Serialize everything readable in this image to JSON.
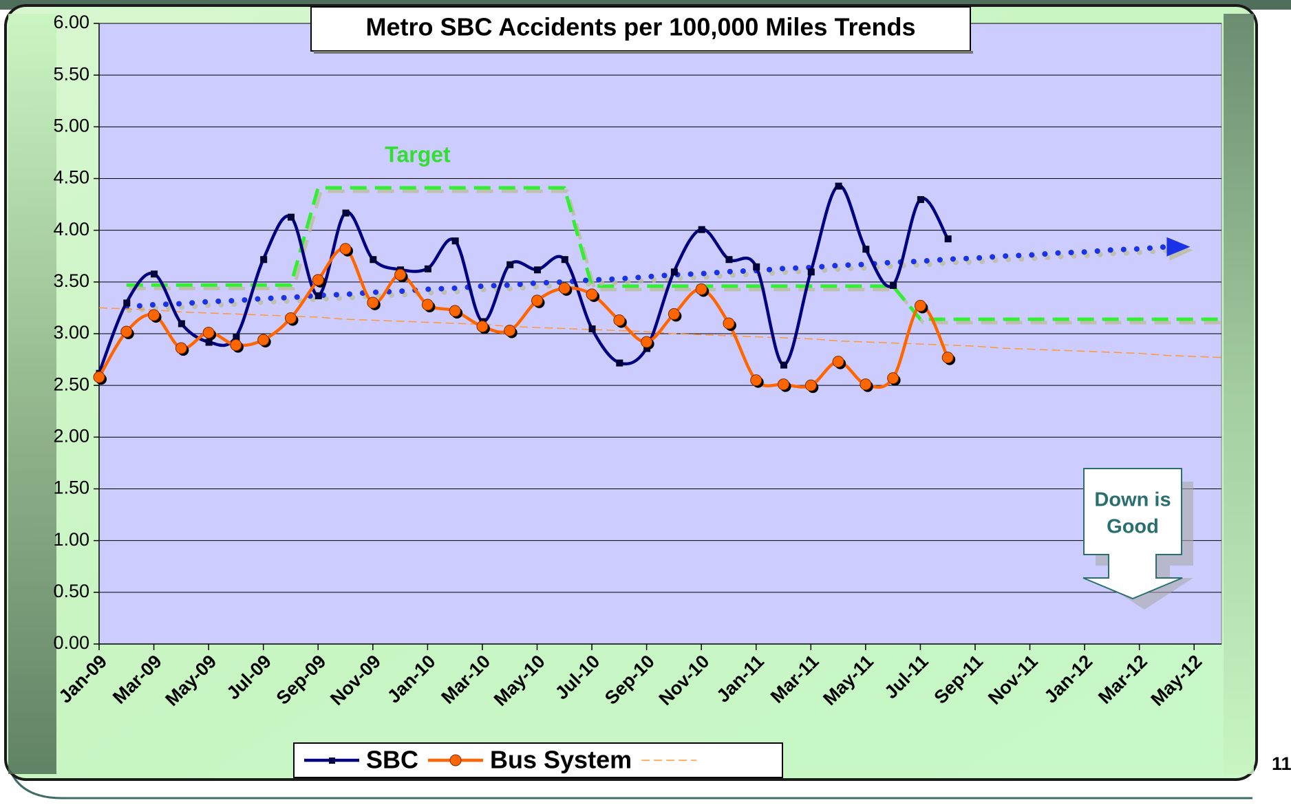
{
  "chart_data": {
    "type": "line",
    "title": "Metro SBC Accidents per 100,000 Miles Trends",
    "categories": [
      "Jan-09",
      null,
      "Mar-09",
      null,
      "May-09",
      null,
      "Jul-09",
      null,
      "Sep-09",
      null,
      "Nov-09",
      null,
      "Jan-10",
      null,
      "Mar-10",
      null,
      "May-10",
      null,
      "Jul-10",
      null,
      "Sep-10",
      null,
      "Nov-10",
      null,
      "Jan-11",
      null,
      "Mar-11",
      null,
      "May-11",
      null,
      "Jul-11",
      null,
      "Sep-11",
      null,
      "Nov-11",
      null,
      "Jan-12",
      null,
      "Mar-12",
      null,
      "May-12",
      null
    ],
    "series": [
      {
        "name": "SBC",
        "color": "#000080",
        "style": "solid",
        "marker": "square",
        "smooth": true,
        "values": [
          2.62,
          3.3,
          3.58,
          3.1,
          2.92,
          2.97,
          3.72,
          4.13,
          3.37,
          4.17,
          3.72,
          3.62,
          3.63,
          3.9,
          3.12,
          3.67,
          3.62,
          3.72,
          3.05,
          2.72,
          2.86,
          3.6,
          4.01,
          3.72,
          3.65,
          2.7,
          3.6,
          4.43,
          3.82,
          3.47,
          4.3,
          3.92,
          null,
          null,
          null,
          null,
          null,
          null,
          null,
          null,
          null,
          null
        ]
      },
      {
        "name": "Bus System",
        "color": "#ff6600",
        "style": "solid",
        "marker": "circle",
        "smooth": true,
        "values": [
          2.58,
          3.02,
          3.18,
          2.86,
          3.01,
          2.89,
          2.94,
          3.15,
          3.52,
          3.82,
          3.3,
          3.57,
          3.28,
          3.22,
          3.07,
          3.03,
          3.32,
          3.44,
          3.38,
          3.13,
          2.92,
          3.19,
          3.43,
          3.1,
          2.55,
          2.51,
          2.5,
          2.73,
          2.51,
          2.57,
          3.27,
          2.77,
          null,
          null,
          null,
          null,
          null,
          null,
          null,
          null,
          null,
          null
        ]
      },
      {
        "color": "#ff9933",
        "style": "dashed-thin",
        "marker": "none",
        "smooth": false,
        "values": [
          3.25,
          3.24,
          3.23,
          3.21,
          3.2,
          3.19,
          3.18,
          3.17,
          3.16,
          3.14,
          3.13,
          3.12,
          3.11,
          3.1,
          3.09,
          3.07,
          3.06,
          3.05,
          3.04,
          3.03,
          3.02,
          3.0,
          2.99,
          2.98,
          2.97,
          2.96,
          2.95,
          2.93,
          2.92,
          2.91,
          2.9,
          2.89,
          2.88,
          2.86,
          2.85,
          2.84,
          2.83,
          2.82,
          2.81,
          2.79,
          2.78,
          2.77
        ]
      },
      {
        "color": "#33ee33",
        "style": "dashed",
        "marker": "none",
        "smooth": false,
        "values": [
          null,
          3.47,
          3.47,
          3.47,
          3.47,
          3.47,
          3.47,
          3.47,
          4.41,
          4.41,
          4.41,
          4.41,
          4.41,
          4.41,
          4.41,
          4.41,
          4.41,
          4.41,
          3.46,
          3.46,
          3.46,
          3.46,
          3.46,
          3.46,
          3.46,
          3.46,
          3.46,
          3.46,
          3.46,
          3.46,
          3.14,
          3.14,
          3.14,
          3.14,
          3.14,
          3.14,
          3.14,
          3.14,
          3.14,
          3.14,
          3.14,
          3.14
        ]
      },
      {
        "color": "#1a33e6",
        "style": "dotted",
        "marker": "arrow",
        "smooth": false,
        "values": [
          null,
          3.26,
          3.28,
          3.29,
          3.31,
          3.32,
          3.34,
          3.35,
          3.37,
          3.38,
          3.4,
          3.41,
          3.43,
          3.44,
          3.46,
          3.47,
          3.49,
          3.5,
          3.52,
          3.53,
          3.55,
          3.57,
          3.58,
          3.6,
          3.61,
          3.63,
          3.64,
          3.66,
          3.67,
          3.69,
          3.7,
          3.72,
          3.73,
          3.75,
          3.76,
          3.78,
          3.79,
          3.81,
          3.82,
          3.84,
          null,
          null
        ]
      }
    ],
    "ylim": [
      0,
      6
    ],
    "yticks": [
      {
        "value": 0,
        "label": "0.00"
      },
      {
        "value": 0.5,
        "label": "0.50"
      },
      {
        "value": 1,
        "label": "1.00"
      },
      {
        "value": 1.5,
        "label": "1.50"
      },
      {
        "value": 2,
        "label": "2.00"
      },
      {
        "value": 2.5,
        "label": "2.50"
      },
      {
        "value": 3,
        "label": "3.00"
      },
      {
        "value": 3.5,
        "label": "3.50"
      },
      {
        "value": 4,
        "label": "4.00"
      },
      {
        "value": 4.5,
        "label": "4.50"
      },
      {
        "value": 5,
        "label": "5.00"
      },
      {
        "value": 5.5,
        "label": "5.50"
      },
      {
        "value": 6,
        "label": "6.00"
      }
    ],
    "grid": true,
    "legend": "bottom",
    "annotations": {
      "target": "Target",
      "down_is_good": [
        "Down is",
        "Good"
      ]
    },
    "page_number": "11"
  }
}
